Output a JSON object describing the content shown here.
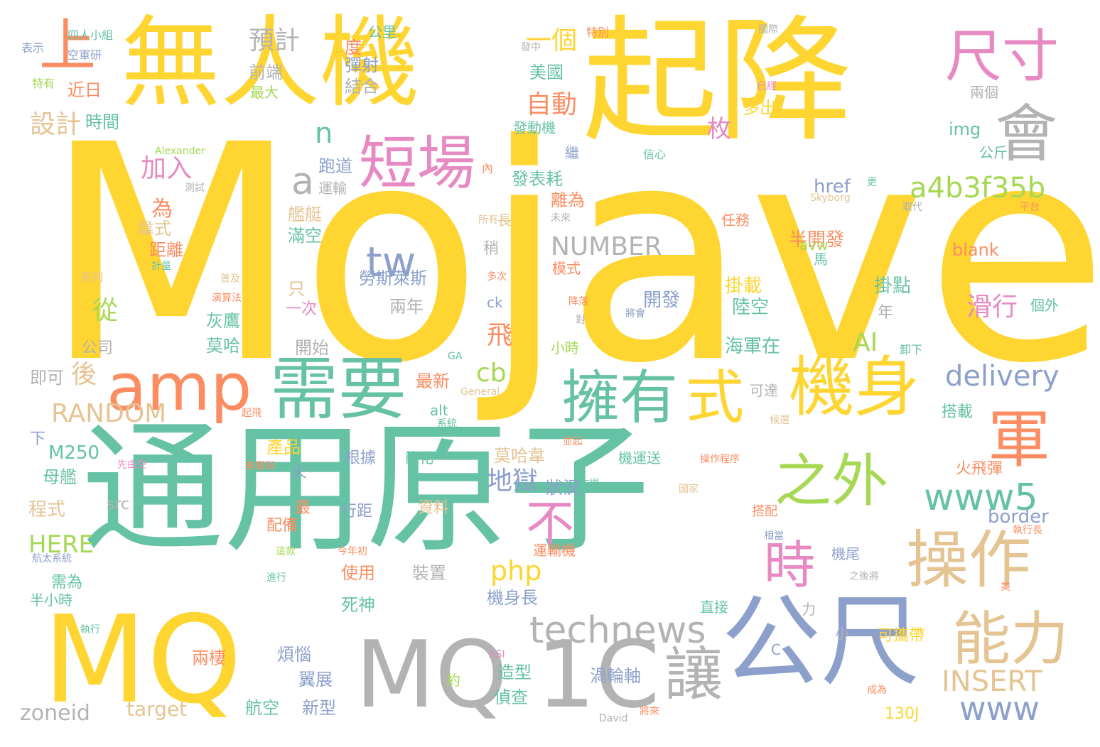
{
  "palette": {
    "yellow": "#fed531",
    "teal": "#66c2a5",
    "orange": "#fc8d62",
    "blue": "#8da0cb",
    "pink": "#e78ac3",
    "green": "#a6d854",
    "tan": "#e5c494",
    "gray": "#b3b3b3"
  },
  "words": [
    {
      "text": "Mojave",
      "color": "yellow",
      "weight": 1.0
    },
    {
      "text": "起降",
      "color": "yellow",
      "weight": 0.78
    },
    {
      "text": "通用原子",
      "color": "teal",
      "weight": 0.75
    },
    {
      "text": "無人機",
      "color": "yellow",
      "weight": 0.62
    },
    {
      "text": "MQ",
      "color": "yellow",
      "weight": 0.5
    },
    {
      "text": "MQ",
      "color": "gray",
      "weight": 0.46
    },
    {
      "text": "1C",
      "color": "gray",
      "weight": 0.46
    },
    {
      "text": "公尺",
      "color": "blue",
      "weight": 0.46
    },
    {
      "text": "會",
      "color": "gray",
      "weight": 0.25
    },
    {
      "text": "尺寸",
      "color": "pink",
      "weight": 0.23
    },
    {
      "text": "上",
      "color": "orange",
      "weight": 0.22
    },
    {
      "text": "短場",
      "color": "pink",
      "weight": 0.24
    },
    {
      "text": "a",
      "color": "gray",
      "weight": 0.2
    },
    {
      "text": "amp",
      "color": "orange",
      "weight": 0.27
    },
    {
      "text": "需要",
      "color": "teal",
      "weight": 0.29
    },
    {
      "text": "擁有",
      "color": "teal",
      "weight": 0.27
    },
    {
      "text": "式",
      "color": "yellow",
      "weight": 0.27
    },
    {
      "text": "機身",
      "color": "yellow",
      "weight": 0.27
    },
    {
      "text": "軍",
      "color": "orange",
      "weight": 0.26
    },
    {
      "text": "之外",
      "color": "green",
      "weight": 0.23
    },
    {
      "text": "www5",
      "color": "teal",
      "weight": 0.2
    },
    {
      "text": "時",
      "color": "pink",
      "weight": 0.22
    },
    {
      "text": "操作",
      "color": "tan",
      "weight": 0.27
    },
    {
      "text": "能力",
      "color": "tan",
      "weight": 0.24
    },
    {
      "text": "讓",
      "color": "gray",
      "weight": 0.24
    },
    {
      "text": "technews",
      "color": "gray",
      "weight": 0.2
    },
    {
      "text": "不",
      "color": "pink",
      "weight": 0.2
    },
    {
      "text": "tw",
      "color": "blue",
      "weight": 0.17
    },
    {
      "text": "a4b3f35b",
      "color": "green",
      "weight": 0.15
    },
    {
      "text": "delivery",
      "color": "blue",
      "weight": 0.15
    },
    {
      "text": "RANDOM",
      "color": "tan",
      "weight": 0.12
    },
    {
      "text": "php",
      "color": "yellow",
      "weight": 0.12
    },
    {
      "text": "www",
      "color": "blue",
      "weight": 0.14
    },
    {
      "text": "INSERT",
      "color": "tan",
      "weight": 0.12
    },
    {
      "text": "NUMBER",
      "color": "gray",
      "weight": 0.1
    },
    {
      "text": "n",
      "color": "teal",
      "weight": 0.12
    },
    {
      "text": "cb",
      "color": "green",
      "weight": 0.1
    },
    {
      "text": "AI",
      "color": "green",
      "weight": 0.1
    },
    {
      "text": "預計",
      "color": "gray",
      "weight": 0.1
    },
    {
      "text": "一個",
      "color": "yellow",
      "weight": 0.1
    },
    {
      "text": "自動",
      "color": "orange",
      "weight": 0.1
    },
    {
      "text": "設計",
      "color": "tan",
      "weight": 0.1
    },
    {
      "text": "加入",
      "color": "pink",
      "weight": 0.1
    },
    {
      "text": "從",
      "color": "green",
      "weight": 0.1
    },
    {
      "text": "後",
      "color": "tan",
      "weight": 0.1
    },
    {
      "text": "地獄",
      "color": "blue",
      "weight": 0.1
    },
    {
      "text": "滑行",
      "color": "pink",
      "weight": 0.1
    },
    {
      "text": "飛",
      "color": "orange",
      "weight": 0.1
    },
    {
      "text": "時間",
      "color": "teal",
      "weight": 0.06
    },
    {
      "text": "近日",
      "color": "orange",
      "weight": 0.06
    },
    {
      "text": "美國",
      "color": "teal",
      "weight": 0.06
    },
    {
      "text": "前端",
      "color": "gray",
      "weight": 0.06
    },
    {
      "text": "結合",
      "color": "gray",
      "weight": 0.06
    },
    {
      "text": "彈射",
      "color": "blue",
      "weight": 0.06
    },
    {
      "text": "度",
      "color": "orange",
      "weight": 0.06
    },
    {
      "text": "最大",
      "color": "green",
      "weight": 0.05
    },
    {
      "text": "枚",
      "color": "pink",
      "weight": 0.07
    },
    {
      "text": "發動機",
      "color": "teal",
      "weight": 0.05
    },
    {
      "text": "跑道",
      "color": "blue",
      "weight": 0.06
    },
    {
      "text": "運輸",
      "color": "gray",
      "weight": 0.05
    },
    {
      "text": "為",
      "color": "orange",
      "weight": 0.07
    },
    {
      "text": "韋式",
      "color": "tan",
      "weight": 0.06
    },
    {
      "text": "距離",
      "color": "orange",
      "weight": 0.06
    },
    {
      "text": "發表耗",
      "color": "teal",
      "weight": 0.06
    },
    {
      "text": "離為",
      "color": "orange",
      "weight": 0.06
    },
    {
      "text": "多出",
      "color": "yellow",
      "weight": 0.05
    },
    {
      "text": "img",
      "color": "teal",
      "weight": 0.06
    },
    {
      "text": "公斤",
      "color": "teal",
      "weight": 0.05
    },
    {
      "text": "href",
      "color": "blue",
      "weight": 0.06
    },
    {
      "text": "blank",
      "color": "orange",
      "weight": 0.06
    },
    {
      "text": "半開發",
      "color": "orange",
      "weight": 0.06
    },
    {
      "text": "avw",
      "color": "green",
      "weight": 0.05
    },
    {
      "text": "模式",
      "color": "orange",
      "weight": 0.05
    },
    {
      "text": "馬",
      "color": "teal",
      "weight": 0.05
    },
    {
      "text": "掛載",
      "color": "yellow",
      "weight": 0.06
    },
    {
      "text": "掛點",
      "color": "teal",
      "weight": 0.06
    },
    {
      "text": "陸空",
      "color": "teal",
      "weight": 0.06
    },
    {
      "text": "個外",
      "color": "teal",
      "weight": 0.05
    },
    {
      "text": "開發",
      "color": "blue",
      "weight": 0.06
    },
    {
      "text": "海軍在",
      "color": "teal",
      "weight": 0.06
    },
    {
      "text": "卸下",
      "color": "teal",
      "weight": 0.04
    },
    {
      "text": "勞斯萊斯",
      "color": "blue",
      "weight": 0.06
    },
    {
      "text": "兩年",
      "color": "gray",
      "weight": 0.06
    },
    {
      "text": "灰鷹",
      "color": "teal",
      "weight": 0.06
    },
    {
      "text": "莫哈",
      "color": "teal",
      "weight": 0.06
    },
    {
      "text": "開始",
      "color": "gray",
      "weight": 0.06
    },
    {
      "text": "公司",
      "color": "gray",
      "weight": 0.06
    },
    {
      "text": "即可",
      "color": "gray",
      "weight": 0.06
    },
    {
      "text": "最新",
      "color": "orange",
      "weight": 0.05
    },
    {
      "text": "小時",
      "color": "green",
      "weight": 0.05
    },
    {
      "text": "可達",
      "color": "gray",
      "weight": 0.05
    },
    {
      "text": "搭載",
      "color": "teal",
      "weight": 0.05
    },
    {
      "text": "莫哈韋",
      "color": "tan",
      "weight": 0.06
    },
    {
      "text": "狀況",
      "color": "blue",
      "weight": 0.06
    },
    {
      "text": "產品",
      "color": "yellow",
      "weight": 0.06
    },
    {
      "text": "程式",
      "color": "tan",
      "weight": 0.06
    },
    {
      "text": "母艦",
      "color": "teal",
      "weight": 0.06
    },
    {
      "text": "M250",
      "color": "teal",
      "weight": 0.06
    },
    {
      "text": "HERE",
      "color": "green",
      "weight": 0.06
    },
    {
      "text": "配備",
      "color": "orange",
      "weight": 0.05
    },
    {
      "text": "根據",
      "color": "blue",
      "weight": 0.05
    },
    {
      "text": "簡化",
      "color": "teal",
      "weight": 0.04
    },
    {
      "text": "機運送",
      "color": "teal",
      "weight": 0.05
    },
    {
      "text": "行距",
      "color": "blue",
      "weight": 0.05
    },
    {
      "text": "資料",
      "color": "tan",
      "weight": 0.05
    },
    {
      "text": "搭配",
      "color": "orange",
      "weight": 0.05
    },
    {
      "text": "火飛彈",
      "color": "orange",
      "weight": 0.05
    },
    {
      "text": "border",
      "color": "blue",
      "weight": 0.06
    },
    {
      "text": "使用",
      "color": "orange",
      "weight": 0.06
    },
    {
      "text": "裝置",
      "color": "gray",
      "weight": 0.06
    },
    {
      "text": "機尾",
      "color": "blue",
      "weight": 0.05
    },
    {
      "text": "需為",
      "color": "teal",
      "weight": 0.05
    },
    {
      "text": "死神",
      "color": "teal",
      "weight": 0.06
    },
    {
      "text": "機身長",
      "color": "blue",
      "weight": 0.05
    },
    {
      "text": "直接",
      "color": "teal",
      "weight": 0.05
    },
    {
      "text": "兩棲",
      "color": "orange",
      "weight": 0.06
    },
    {
      "text": "煩惱",
      "color": "blue",
      "weight": 0.05
    },
    {
      "text": "翼展",
      "color": "blue",
      "weight": 0.05
    },
    {
      "text": "造型",
      "color": "teal",
      "weight": 0.05
    },
    {
      "text": "偵查",
      "color": "teal",
      "weight": 0.05
    },
    {
      "text": "渦輪軸",
      "color": "blue",
      "weight": 0.05
    },
    {
      "text": "可攜帶",
      "color": "yellow",
      "weight": 0.05
    },
    {
      "text": "航空",
      "color": "teal",
      "weight": 0.05
    },
    {
      "text": "新型",
      "color": "blue",
      "weight": 0.05
    },
    {
      "text": "zoneid",
      "color": "gray",
      "weight": 0.06
    },
    {
      "text": "target",
      "color": "tan",
      "weight": 0.06
    },
    {
      "text": "130J",
      "color": "yellow",
      "weight": 0.05
    },
    {
      "text": "四人小組",
      "color": "teal",
      "weight": 0.03
    },
    {
      "text": "表示",
      "color": "blue",
      "weight": 0.03
    },
    {
      "text": "空軍研",
      "color": "blue",
      "weight": 0.03
    },
    {
      "text": "特有",
      "color": "green",
      "weight": 0.03
    },
    {
      "text": "公里",
      "color": "teal",
      "weight": 0.04
    },
    {
      "text": "發中",
      "color": "gray",
      "weight": 0.03
    },
    {
      "text": "特別",
      "color": "orange",
      "weight": 0.03
    },
    {
      "text": "國際",
      "color": "gray",
      "weight": 0.03
    },
    {
      "text": "已經",
      "color": "pink",
      "weight": 0.03
    },
    {
      "text": "兩個",
      "color": "gray",
      "weight": 0.04
    },
    {
      "text": "Alexander",
      "color": "green",
      "weight": 0.03
    },
    {
      "text": "繼",
      "color": "blue",
      "weight": 0.04
    },
    {
      "text": "信心",
      "color": "teal",
      "weight": 0.03
    },
    {
      "text": "內",
      "color": "orange",
      "weight": 0.03
    },
    {
      "text": "更",
      "color": "teal",
      "weight": 0.03
    },
    {
      "text": "Skyborg",
      "color": "tan",
      "weight": 0.03
    },
    {
      "text": "取代",
      "color": "gray",
      "weight": 0.03
    },
    {
      "text": "平台",
      "color": "orange",
      "weight": 0.03
    },
    {
      "text": "測試",
      "color": "gray",
      "weight": 0.03
    },
    {
      "text": "任務",
      "color": "orange",
      "weight": 0.04
    },
    {
      "text": "長",
      "color": "tan",
      "weight": 0.04
    },
    {
      "text": "所有",
      "color": "tan",
      "weight": 0.03
    },
    {
      "text": "未來",
      "color": "gray",
      "weight": 0.03
    },
    {
      "text": "艦艇",
      "color": "tan",
      "weight": 0.04
    },
    {
      "text": "滿空",
      "color": "teal",
      "weight": 0.04
    },
    {
      "text": "稍",
      "color": "gray",
      "weight": 0.04
    },
    {
      "text": "計量",
      "color": "teal",
      "weight": 0.03
    },
    {
      "text": "系列",
      "color": "tan",
      "weight": 0.03
    },
    {
      "text": "普及",
      "color": "tan",
      "weight": 0.03
    },
    {
      "text": "演算法",
      "color": "orange",
      "weight": 0.03
    },
    {
      "text": "只",
      "color": "tan",
      "weight": 0.04
    },
    {
      "text": "多次",
      "color": "orange",
      "weight": 0.03
    },
    {
      "text": "ck",
      "color": "blue",
      "weight": 0.04
    },
    {
      "text": "一次",
      "color": "pink",
      "weight": 0.04
    },
    {
      "text": "降落",
      "color": "orange",
      "weight": 0.03
    },
    {
      "text": "將會",
      "color": "blue",
      "weight": 0.03
    },
    {
      "text": "對",
      "color": "gray",
      "weight": 0.03
    },
    {
      "text": "年",
      "color": "gray",
      "weight": 0.04
    },
    {
      "text": "GA",
      "color": "teal",
      "weight": 0.03
    },
    {
      "text": "General",
      "color": "tan",
      "weight": 0.03
    },
    {
      "text": "起飛",
      "color": "orange",
      "weight": 0.03
    },
    {
      "text": "alt",
      "color": "teal",
      "weight": 0.04
    },
    {
      "text": "系統",
      "color": "teal",
      "weight": 0.03
    },
    {
      "text": "候選",
      "color": "tan",
      "weight": 0.03
    },
    {
      "text": "並起",
      "color": "orange",
      "weight": 0.03
    },
    {
      "text": "下",
      "color": "blue",
      "weight": 0.04
    },
    {
      "text": "先由空",
      "color": "pink",
      "weight": 0.03
    },
    {
      "text": "美軍與",
      "color": "orange",
      "weight": 0.03
    },
    {
      "text": "火",
      "color": "blue",
      "weight": 0.04
    },
    {
      "text": "操作程序",
      "color": "orange",
      "weight": 0.03
    },
    {
      "text": "國家",
      "color": "tan",
      "weight": 0.03
    },
    {
      "text": "市場",
      "color": "teal",
      "weight": 0.03
    },
    {
      "text": "src",
      "color": "gray",
      "weight": 0.04
    },
    {
      "text": "最",
      "color": "orange",
      "weight": 0.04
    },
    {
      "text": "相當",
      "color": "blue",
      "weight": 0.03
    },
    {
      "text": "執行長",
      "color": "orange",
      "weight": 0.03
    },
    {
      "text": "運輸機",
      "color": "orange",
      "weight": 0.04
    },
    {
      "text": "今年初",
      "color": "orange",
      "weight": 0.03
    },
    {
      "text": "航太系統",
      "color": "blue",
      "weight": 0.03
    },
    {
      "text": "這款",
      "color": "green",
      "weight": 0.03
    },
    {
      "text": "進行",
      "color": "teal",
      "weight": 0.03
    },
    {
      "text": "之後將",
      "color": "gray",
      "weight": 0.03
    },
    {
      "text": "美",
      "color": "orange",
      "weight": 0.03
    },
    {
      "text": "半小時",
      "color": "teal",
      "weight": 0.04
    },
    {
      "text": "執行",
      "color": "teal",
      "weight": 0.03
    },
    {
      "text": "力",
      "color": "gray",
      "weight": 0.04
    },
    {
      "text": "小",
      "color": "gray",
      "weight": 0.04
    },
    {
      "text": "C",
      "color": "blue",
      "weight": 0.04
    },
    {
      "text": "ASI",
      "color": "pink",
      "weight": 0.03
    },
    {
      "text": "約",
      "color": "green",
      "weight": 0.04
    },
    {
      "text": "成為",
      "color": "orange",
      "weight": 0.03
    },
    {
      "text": "David",
      "color": "gray",
      "weight": 0.03
    },
    {
      "text": "將來",
      "color": "orange",
      "weight": 0.03
    }
  ]
}
